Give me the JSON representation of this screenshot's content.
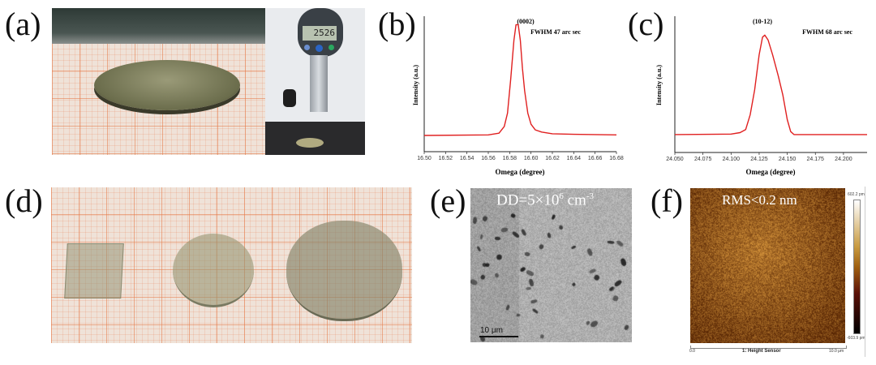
{
  "panels": {
    "a": {
      "label": "(a)",
      "gauge_display": "2526"
    },
    "b": {
      "label": "(b)"
    },
    "c": {
      "label": "(c)"
    },
    "d": {
      "label": "(d)"
    },
    "e": {
      "label": "(e)",
      "annotation_main": "DD=5×10",
      "annotation_exp": "6",
      "annotation_unit": " cm",
      "annotation_unit_exp": "-3",
      "scale_bar": "10 μm"
    },
    "f": {
      "label": "(f)",
      "annotation": "RMS<0.2 nm",
      "colorbar_max": "602.2 pm",
      "colorbar_min": "-603.9 pm",
      "axis_left": "0.0",
      "axis_title": "1: Height Sensor",
      "axis_right": "10.0 μm"
    }
  },
  "chart_data": [
    {
      "type": "line",
      "panel": "b",
      "annotation_1": "(0002)",
      "annotation_2": "FWHM 47 arc sec",
      "xlabel": "Omega (degree)",
      "ylabel": "Intensity (a.u.)",
      "xlim": [
        16.5,
        16.68
      ],
      "xticks": [
        "16.50",
        "16.52",
        "16.54",
        "16.56",
        "16.58",
        "16.60",
        "16.62",
        "16.64",
        "16.66",
        "16.68"
      ],
      "color": "#e02020",
      "grid": false,
      "x": [
        16.5,
        16.56,
        16.57,
        16.575,
        16.578,
        16.581,
        16.584,
        16.586,
        16.588,
        16.59,
        16.592,
        16.594,
        16.597,
        16.6,
        16.604,
        16.61,
        16.62,
        16.64,
        16.68
      ],
      "y": [
        0,
        0.005,
        0.02,
        0.08,
        0.2,
        0.5,
        0.85,
        0.99,
        0.99,
        0.85,
        0.6,
        0.4,
        0.2,
        0.1,
        0.05,
        0.03,
        0.015,
        0.01,
        0.005
      ]
    },
    {
      "type": "line",
      "panel": "c",
      "annotation_1": "(10-12)",
      "annotation_2": "FWHM 68 arc sec",
      "xlabel": "Omega (degree)",
      "ylabel": "Intensity (a.u.)",
      "xlim": [
        24.05,
        24.221
      ],
      "xticks": [
        "24.050",
        "24.075",
        "24.100",
        "24.125",
        "24.150",
        "24.175",
        "24.200"
      ],
      "color": "#e02020",
      "grid": false,
      "x": [
        24.05,
        24.1,
        24.108,
        24.113,
        24.117,
        24.121,
        24.125,
        24.128,
        24.13,
        24.133,
        24.137,
        24.142,
        24.146,
        24.15,
        24.153,
        24.156,
        24.221
      ],
      "y": [
        0,
        0.005,
        0.02,
        0.05,
        0.2,
        0.45,
        0.8,
        0.98,
        1.0,
        0.95,
        0.8,
        0.59,
        0.4,
        0.15,
        0.03,
        0,
        0
      ]
    }
  ]
}
